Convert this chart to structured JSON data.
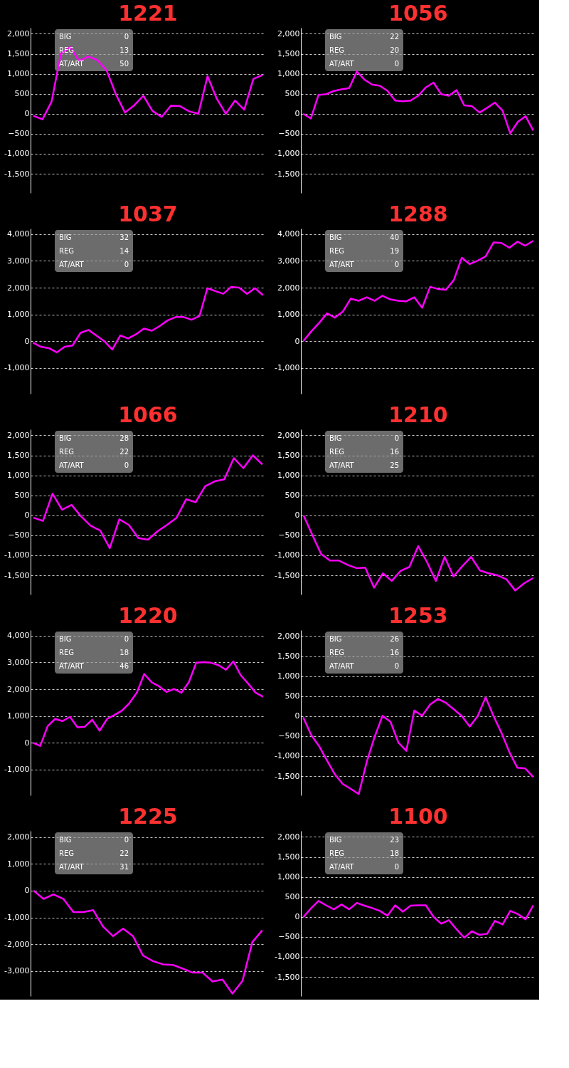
{
  "chart_data": [
    {
      "type": "line",
      "title": "1221",
      "annotations": [
        "BIG",
        "0",
        "REG",
        "13",
        "AT/ART",
        "50"
      ],
      "grid": "y",
      "tick_labels": "y",
      "ylim": [
        -1980,
        2150
      ],
      "yticks": [
        {
          "value": -1500,
          "label": "-1,500"
        },
        {
          "value": -1000,
          "label": "-1,000"
        },
        -500,
        0,
        500,
        {
          "value": 1000,
          "label": "1,000"
        },
        {
          "value": 1500,
          "label": "1,500"
        },
        {
          "value": 2000,
          "label": "2,000"
        }
      ],
      "categories": [
        null,
        null,
        null,
        null,
        null,
        null,
        null,
        null,
        null,
        null,
        null,
        null,
        null,
        null,
        null,
        null,
        null,
        null,
        null,
        null,
        null,
        null,
        null,
        null,
        null,
        null
      ],
      "series": [
        {
          "color": "#ff00ff",
          "values": [
            -50,
            -140,
            310,
            1500,
            1670,
            1320,
            1430,
            1340,
            1080,
            490,
            30,
            210,
            450,
            70,
            -80,
            200,
            190,
            60,
            0,
            940,
            380,
            0,
            330,
            100,
            870,
            970
          ]
        }
      ]
    },
    {
      "type": "line",
      "title": "1056",
      "annotations": [
        "BIG",
        "22",
        "REG",
        "20",
        "AT/ART",
        "0"
      ],
      "grid": "y",
      "tick_labels": "y",
      "ylim": [
        -1980,
        2150
      ],
      "yticks": [
        {
          "value": -1500,
          "label": "-1,500"
        },
        {
          "value": -1000,
          "label": "-1,000"
        },
        -500,
        0,
        500,
        {
          "value": 1000,
          "label": "1,000"
        },
        {
          "value": 1500,
          "label": "1,500"
        },
        {
          "value": 2000,
          "label": "2,000"
        }
      ],
      "categories": [
        null,
        null,
        null,
        null,
        null,
        null,
        null,
        null,
        null,
        null,
        null,
        null,
        null,
        null,
        null,
        null,
        null,
        null,
        null,
        null,
        null,
        null,
        null,
        null,
        null,
        null,
        null,
        null,
        null,
        null,
        null
      ],
      "series": [
        {
          "color": "#ff00ff",
          "values": [
            0,
            -120,
            470,
            490,
            570,
            610,
            640,
            1060,
            850,
            730,
            700,
            570,
            330,
            310,
            330,
            450,
            660,
            780,
            490,
            450,
            590,
            210,
            190,
            30,
            150,
            280,
            80,
            -490,
            -200,
            -60,
            -420
          ]
        }
      ]
    },
    {
      "type": "line",
      "title": "1037",
      "annotations": [
        "BIG",
        "32",
        "REG",
        "14",
        "AT/ART",
        "0"
      ],
      "grid": "y",
      "tick_labels": "y",
      "ylim": [
        -1965,
        4210
      ],
      "yticks": [
        {
          "value": -1000,
          "label": "-1,000"
        },
        0,
        {
          "value": 1000,
          "label": "1,000"
        },
        {
          "value": 2000,
          "label": "2,000"
        },
        {
          "value": 3000,
          "label": "3,000"
        },
        {
          "value": 4000,
          "label": "4,000"
        }
      ],
      "categories": [
        null,
        null,
        null,
        null,
        null,
        null,
        null,
        null,
        null,
        null,
        null,
        null,
        null,
        null,
        null,
        null,
        null,
        null,
        null,
        null,
        null,
        null,
        null,
        null,
        null,
        null,
        null,
        null,
        null,
        null
      ],
      "series": [
        {
          "color": "#ff00ff",
          "values": [
            -50,
            -210,
            -260,
            -420,
            -210,
            -160,
            310,
            420,
            210,
            0,
            -310,
            210,
            100,
            260,
            470,
            390,
            570,
            780,
            900,
            900,
            800,
            940,
            1980,
            1870,
            1770,
            2030,
            2000,
            1770,
            1980,
            1720
          ]
        }
      ]
    },
    {
      "type": "line",
      "title": "1288",
      "annotations": [
        "BIG",
        "40",
        "REG",
        "19",
        "AT/ART",
        "0"
      ],
      "grid": "y",
      "tick_labels": "y",
      "ylim": [
        -1965,
        4210
      ],
      "yticks": [
        {
          "value": -1000,
          "label": "-1,000"
        },
        0,
        {
          "value": 1000,
          "label": "1,000"
        },
        {
          "value": 2000,
          "label": "2,000"
        },
        {
          "value": 3000,
          "label": "3,000"
        },
        {
          "value": 4000,
          "label": "4,000"
        }
      ],
      "categories": [
        null,
        null,
        null,
        null,
        null,
        null,
        null,
        null,
        null,
        null,
        null,
        null,
        null,
        null,
        null,
        null,
        null,
        null,
        null,
        null,
        null,
        null,
        null,
        null,
        null,
        null,
        null,
        null,
        null,
        null
      ],
      "series": [
        {
          "color": "#ff00ff",
          "values": [
            0,
            360,
            680,
            1040,
            880,
            1110,
            1590,
            1510,
            1640,
            1510,
            1700,
            1560,
            1510,
            1490,
            1640,
            1250,
            2030,
            1950,
            1920,
            2290,
            3120,
            2880,
            3010,
            3170,
            3690,
            3670,
            3490,
            3720,
            3570,
            3750
          ]
        }
      ]
    },
    {
      "type": "line",
      "title": "1066",
      "annotations": [
        "BIG",
        "28",
        "REG",
        "22",
        "AT/ART",
        "0"
      ],
      "grid": "y",
      "tick_labels": "y",
      "ylim": [
        -1980,
        2150
      ],
      "yticks": [
        {
          "value": -1500,
          "label": "-1,500"
        },
        {
          "value": -1000,
          "label": "-1,000"
        },
        -500,
        0,
        500,
        {
          "value": 1000,
          "label": "1,000"
        },
        {
          "value": 1500,
          "label": "1,500"
        },
        {
          "value": 2000,
          "label": "2,000"
        }
      ],
      "categories": [
        null,
        null,
        null,
        null,
        null,
        null,
        null,
        null,
        null,
        null,
        null,
        null,
        null,
        null,
        null,
        null,
        null,
        null,
        null,
        null,
        null,
        null,
        null,
        null,
        null
      ],
      "series": [
        {
          "color": "#ff00ff",
          "values": [
            -60,
            -140,
            540,
            140,
            260,
            -30,
            -260,
            -380,
            -820,
            -100,
            -240,
            -570,
            -610,
            -400,
            -240,
            -60,
            400,
            330,
            730,
            850,
            900,
            1430,
            1180,
            1500,
            1270
          ]
        }
      ]
    },
    {
      "type": "line",
      "title": "1210",
      "annotations": [
        "BIG",
        "0",
        "REG",
        "16",
        "AT/ART",
        "25"
      ],
      "grid": "y",
      "tick_labels": "y",
      "ylim": [
        -1980,
        2150
      ],
      "yticks": [
        {
          "value": -1500,
          "label": "-1,500"
        },
        {
          "value": -1000,
          "label": "-1,000"
        },
        -500,
        0,
        500,
        {
          "value": 1000,
          "label": "1,000"
        },
        {
          "value": 1500,
          "label": "1,500"
        },
        {
          "value": 2000,
          "label": "2,000"
        }
      ],
      "categories": [
        null,
        null,
        null,
        null,
        null,
        null,
        null,
        null,
        null,
        null,
        null,
        null,
        null,
        null,
        null,
        null,
        null,
        null,
        null,
        null,
        null,
        null,
        null,
        null,
        null,
        null,
        null
      ],
      "series": [
        {
          "color": "#ff00ff",
          "values": [
            0,
            -490,
            -970,
            -1130,
            -1130,
            -1240,
            -1320,
            -1310,
            -1810,
            -1450,
            -1640,
            -1390,
            -1290,
            -770,
            -1170,
            -1640,
            -1040,
            -1530,
            -1270,
            -1040,
            -1380,
            -1450,
            -1500,
            -1600,
            -1880,
            -1700,
            -1570
          ]
        }
      ]
    },
    {
      "type": "line",
      "title": "1220",
      "annotations": [
        "BIG",
        "0",
        "REG",
        "18",
        "AT/ART",
        "46"
      ],
      "grid": "y",
      "tick_labels": "y",
      "ylim": [
        -1965,
        4210
      ],
      "yticks": [
        {
          "value": -1000,
          "label": "-1,000"
        },
        0,
        {
          "value": 1000,
          "label": "1,000"
        },
        {
          "value": 2000,
          "label": "2,000"
        },
        {
          "value": 3000,
          "label": "3,000"
        },
        {
          "value": 4000,
          "label": "4,000"
        }
      ],
      "categories": [
        null,
        null,
        null,
        null,
        null,
        null,
        null,
        null,
        null,
        null,
        null,
        null,
        null,
        null,
        null,
        null,
        null,
        null,
        null,
        null,
        null,
        null,
        null,
        null,
        null,
        null,
        null,
        null,
        null,
        null,
        null,
        null
      ],
      "series": [
        {
          "color": "#ff00ff",
          "values": [
            0,
            -120,
            620,
            890,
            810,
            970,
            580,
            600,
            860,
            450,
            890,
            1040,
            1200,
            1480,
            1870,
            2570,
            2260,
            2110,
            1900,
            2010,
            1870,
            2260,
            2990,
            3010,
            2990,
            2900,
            2730,
            3040,
            2520,
            2210,
            1870,
            1720
          ]
        }
      ]
    },
    {
      "type": "line",
      "title": "1253",
      "annotations": [
        "BIG",
        "26",
        "REG",
        "16",
        "AT/ART",
        "0"
      ],
      "grid": "y",
      "tick_labels": "y",
      "ylim": [
        -1980,
        2150
      ],
      "yticks": [
        {
          "value": -1500,
          "label": "-1,500"
        },
        {
          "value": -1000,
          "label": "-1,000"
        },
        -500,
        0,
        500,
        {
          "value": 1000,
          "label": "1,000"
        },
        {
          "value": 1500,
          "label": "1,500"
        },
        {
          "value": 2000,
          "label": "2,000"
        }
      ],
      "categories": [
        null,
        null,
        null,
        null,
        null,
        null,
        null,
        null,
        null,
        null,
        null,
        null,
        null,
        null,
        null,
        null,
        null,
        null,
        null,
        null,
        null,
        null,
        null,
        null,
        null,
        null,
        null,
        null,
        null,
        null
      ],
      "series": [
        {
          "color": "#ff00ff",
          "values": [
            -30,
            -470,
            -750,
            -1110,
            -1460,
            -1700,
            -1820,
            -1950,
            -1150,
            -520,
            10,
            -140,
            -660,
            -870,
            140,
            10,
            290,
            430,
            330,
            170,
            0,
            -260,
            0,
            470,
            0,
            -420,
            -900,
            -1290,
            -1310,
            -1520
          ]
        }
      ]
    },
    {
      "type": "line",
      "title": "1225",
      "annotations": [
        "BIG",
        "0",
        "REG",
        "22",
        "AT/ART",
        "31"
      ],
      "grid": "y",
      "tick_labels": "y",
      "ylim": [
        -3935,
        2228
      ],
      "yticks": [
        {
          "value": -3000,
          "label": "-3,000"
        },
        {
          "value": -2000,
          "label": "-2,000"
        },
        {
          "value": -1000,
          "label": "-1,000"
        },
        0,
        {
          "value": 1000,
          "label": "1,000"
        },
        {
          "value": 2000,
          "label": "2,000"
        }
      ],
      "categories": [
        null,
        null,
        null,
        null,
        null,
        null,
        null,
        null,
        null,
        null,
        null,
        null,
        null,
        null,
        null,
        null,
        null,
        null,
        null,
        null,
        null,
        null,
        null,
        null
      ],
      "series": [
        {
          "color": "#ff00ff",
          "values": [
            0,
            -310,
            -140,
            -310,
            -800,
            -800,
            -730,
            -1350,
            -1700,
            -1420,
            -1700,
            -2420,
            -2630,
            -2750,
            -2770,
            -2910,
            -3060,
            -3060,
            -3390,
            -3320,
            -3840,
            -3370,
            -1920,
            -1480
          ]
        }
      ]
    },
    {
      "type": "line",
      "title": "1100",
      "annotations": [
        "BIG",
        "23",
        "REG",
        "18",
        "AT/ART",
        "0"
      ],
      "grid": "y",
      "tick_labels": "y",
      "ylim": [
        -1980,
        2150
      ],
      "yticks": [
        {
          "value": -1500,
          "label": "-1,500"
        },
        {
          "value": -1000,
          "label": "-1,000"
        },
        -500,
        0,
        500,
        {
          "value": 1000,
          "label": "1,000"
        },
        {
          "value": 1500,
          "label": "1,500"
        },
        {
          "value": 2000,
          "label": "2,000"
        }
      ],
      "categories": [
        null,
        null,
        null,
        null,
        null,
        null,
        null,
        null,
        null,
        null,
        null,
        null,
        null,
        null,
        null,
        null,
        null,
        null,
        null,
        null,
        null,
        null,
        null,
        null,
        null,
        null,
        null,
        null,
        null,
        null,
        null
      ],
      "series": [
        {
          "color": "#ff00ff",
          "values": [
            -10,
            210,
            400,
            290,
            190,
            310,
            190,
            350,
            280,
            220,
            150,
            30,
            290,
            130,
            280,
            290,
            290,
            0,
            -170,
            -80,
            -310,
            -520,
            -360,
            -450,
            -420,
            -100,
            -190,
            150,
            70,
            -60,
            290
          ]
        }
      ]
    }
  ]
}
